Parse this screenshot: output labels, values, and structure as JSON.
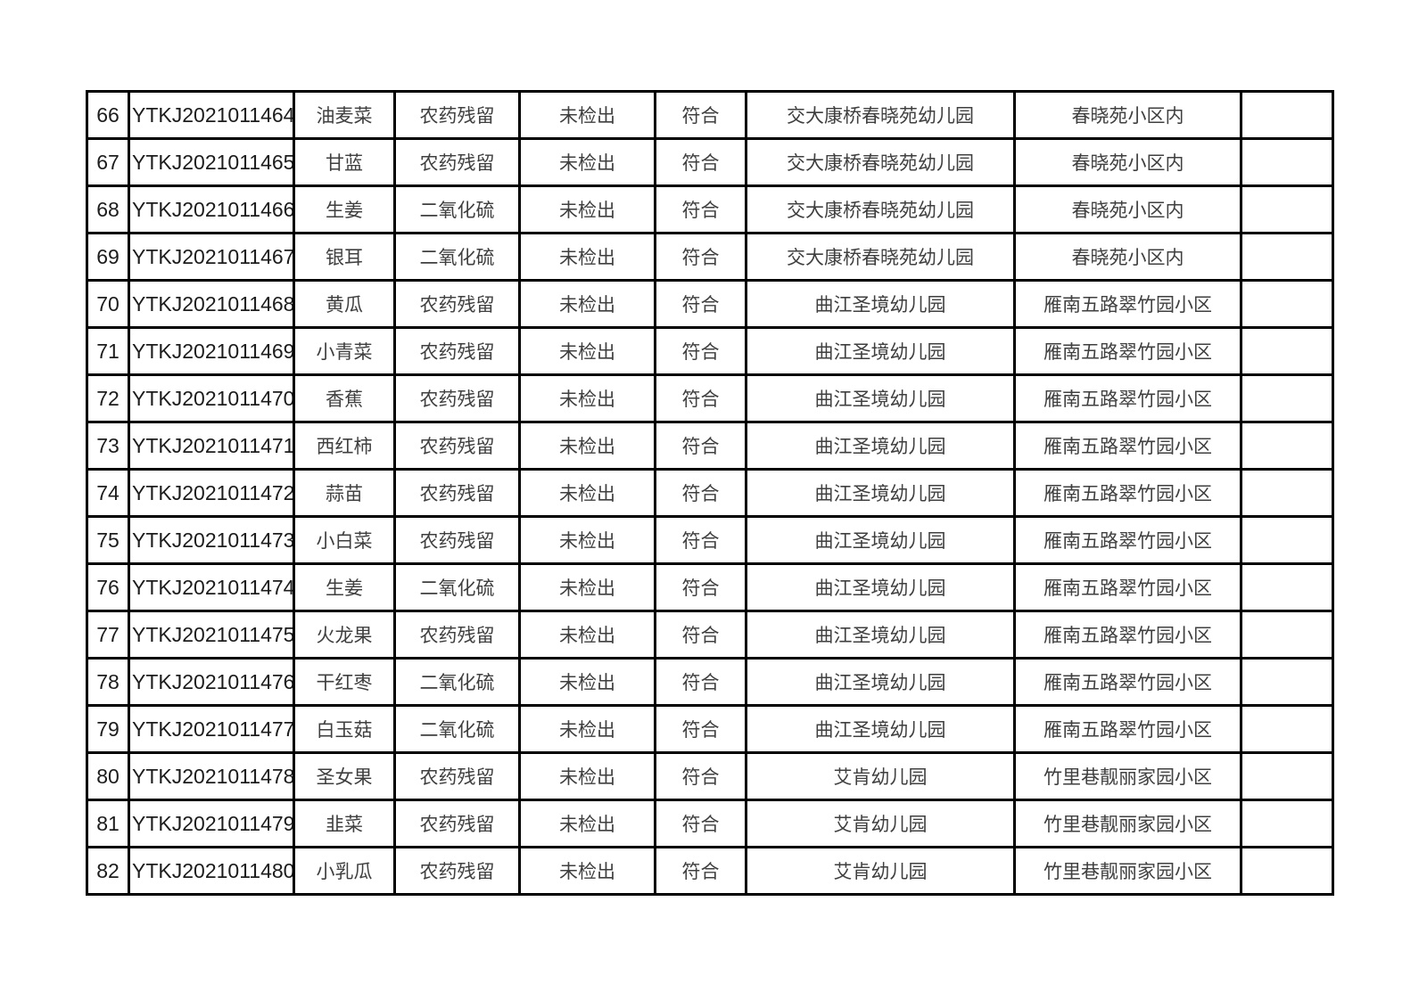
{
  "table": {
    "description_columns": [
      "row_number",
      "sample_code",
      "food_name",
      "test_item",
      "test_result",
      "conformity",
      "sample_site",
      "site_address",
      "remark"
    ],
    "rows": [
      [
        "66",
        "YTKJ2021011464",
        "油麦菜",
        "农药残留",
        "未检出",
        "符合",
        "交大康桥春晓苑幼儿园",
        "春晓苑小区内",
        ""
      ],
      [
        "67",
        "YTKJ2021011465",
        "甘蓝",
        "农药残留",
        "未检出",
        "符合",
        "交大康桥春晓苑幼儿园",
        "春晓苑小区内",
        ""
      ],
      [
        "68",
        "YTKJ2021011466",
        "生姜",
        "二氧化硫",
        "未检出",
        "符合",
        "交大康桥春晓苑幼儿园",
        "春晓苑小区内",
        ""
      ],
      [
        "69",
        "YTKJ2021011467",
        "银耳",
        "二氧化硫",
        "未检出",
        "符合",
        "交大康桥春晓苑幼儿园",
        "春晓苑小区内",
        ""
      ],
      [
        "70",
        "YTKJ2021011468",
        "黄瓜",
        "农药残留",
        "未检出",
        "符合",
        "曲江圣境幼儿园",
        "雁南五路翠竹园小区",
        ""
      ],
      [
        "71",
        "YTKJ2021011469",
        "小青菜",
        "农药残留",
        "未检出",
        "符合",
        "曲江圣境幼儿园",
        "雁南五路翠竹园小区",
        ""
      ],
      [
        "72",
        "YTKJ2021011470",
        "香蕉",
        "农药残留",
        "未检出",
        "符合",
        "曲江圣境幼儿园",
        "雁南五路翠竹园小区",
        ""
      ],
      [
        "73",
        "YTKJ2021011471",
        "西红柿",
        "农药残留",
        "未检出",
        "符合",
        "曲江圣境幼儿园",
        "雁南五路翠竹园小区",
        ""
      ],
      [
        "74",
        "YTKJ2021011472",
        "蒜苗",
        "农药残留",
        "未检出",
        "符合",
        "曲江圣境幼儿园",
        "雁南五路翠竹园小区",
        ""
      ],
      [
        "75",
        "YTKJ2021011473",
        "小白菜",
        "农药残留",
        "未检出",
        "符合",
        "曲江圣境幼儿园",
        "雁南五路翠竹园小区",
        ""
      ],
      [
        "76",
        "YTKJ2021011474",
        "生姜",
        "二氧化硫",
        "未检出",
        "符合",
        "曲江圣境幼儿园",
        "雁南五路翠竹园小区",
        ""
      ],
      [
        "77",
        "YTKJ2021011475",
        "火龙果",
        "农药残留",
        "未检出",
        "符合",
        "曲江圣境幼儿园",
        "雁南五路翠竹园小区",
        ""
      ],
      [
        "78",
        "YTKJ2021011476",
        "干红枣",
        "二氧化硫",
        "未检出",
        "符合",
        "曲江圣境幼儿园",
        "雁南五路翠竹园小区",
        ""
      ],
      [
        "79",
        "YTKJ2021011477",
        "白玉菇",
        "二氧化硫",
        "未检出",
        "符合",
        "曲江圣境幼儿园",
        "雁南五路翠竹园小区",
        ""
      ],
      [
        "80",
        "YTKJ2021011478",
        "圣女果",
        "农药残留",
        "未检出",
        "符合",
        "艾肯幼儿园",
        "竹里巷靓丽家园小区",
        ""
      ],
      [
        "81",
        "YTKJ2021011479",
        "韭菜",
        "农药残留",
        "未检出",
        "符合",
        "艾肯幼儿园",
        "竹里巷靓丽家园小区",
        ""
      ],
      [
        "82",
        "YTKJ2021011480",
        "小乳瓜",
        "农药残留",
        "未检出",
        "符合",
        "艾肯幼儿园",
        "竹里巷靓丽家园小区",
        ""
      ]
    ],
    "grid_color": "#000000",
    "latin_text_color": "#1c1c1c",
    "cjk_text_color": "#3f3f3f",
    "background_color": "#ffffff"
  }
}
